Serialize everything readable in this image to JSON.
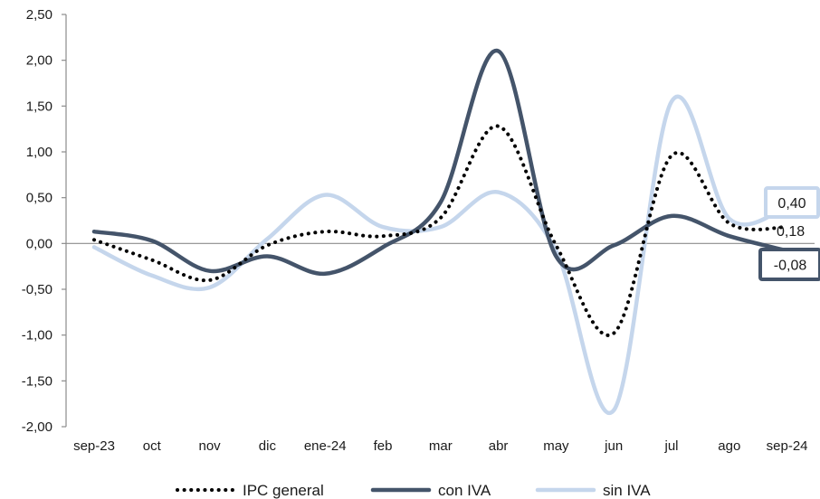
{
  "chart_data": {
    "type": "line",
    "title": "",
    "xlabel": "",
    "ylabel": "",
    "categories": [
      "sep-23",
      "oct",
      "nov",
      "dic",
      "ene-24",
      "feb",
      "mar",
      "abr",
      "may",
      "jun",
      "jul",
      "ago",
      "sep-24"
    ],
    "y_tick_labels": [
      "2,50",
      "2,00",
      "1,50",
      "1,00",
      "0,50",
      "0,00",
      "-0,50",
      "-1,00",
      "-1,50",
      "-2,00"
    ],
    "y_tick_values": [
      2.5,
      2.0,
      1.5,
      1.0,
      0.5,
      0.0,
      -0.5,
      -1.0,
      -1.5,
      -2.0
    ],
    "ylim": [
      -2.0,
      2.5
    ],
    "grid": false,
    "legend_position": "bottom",
    "series": [
      {
        "name": "IPC general",
        "style": "dotted",
        "color": "#000000",
        "values": [
          0.04,
          -0.18,
          -0.4,
          -0.02,
          0.13,
          0.08,
          0.28,
          1.28,
          -0.02,
          -0.98,
          0.96,
          0.22,
          0.18
        ]
      },
      {
        "name": "con IVA",
        "style": "solid",
        "color": "#44546a",
        "values": [
          0.13,
          0.03,
          -0.3,
          -0.14,
          -0.33,
          -0.04,
          0.45,
          2.1,
          -0.14,
          -0.02,
          0.3,
          0.08,
          -0.08
        ]
      },
      {
        "name": "sin IVA",
        "style": "solid",
        "color": "#c5d6ec",
        "values": [
          -0.04,
          -0.35,
          -0.48,
          0.05,
          0.53,
          0.18,
          0.18,
          0.56,
          -0.08,
          -1.82,
          1.55,
          0.27,
          0.4
        ]
      }
    ],
    "end_labels": [
      {
        "series": "sin IVA",
        "text": "0,40",
        "boxed": true,
        "border_color": "#c5d6ec"
      },
      {
        "series": "IPC general",
        "text": "0,18",
        "boxed": false
      },
      {
        "series": "con IVA",
        "text": "-0,08",
        "boxed": true,
        "border_color": "#44546a"
      }
    ]
  }
}
